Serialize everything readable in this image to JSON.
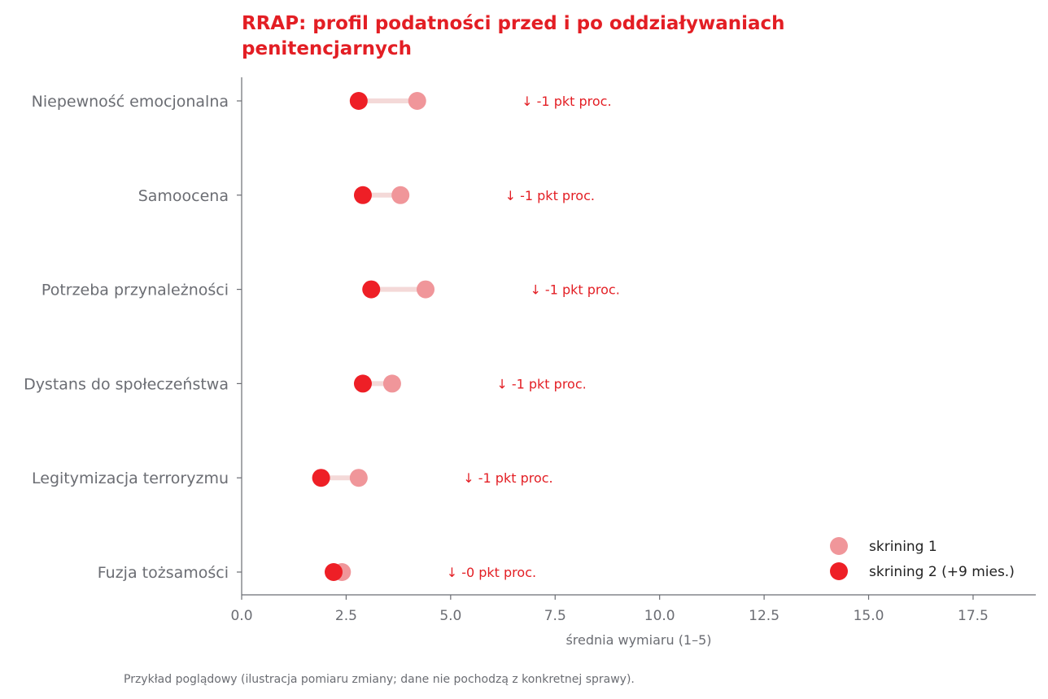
{
  "colors": {
    "accent": "#e31e24",
    "before": "#f0969a",
    "after": "#ee1f26",
    "connector": "#f4d9d8",
    "text_gray": "#6b6d73",
    "axis": "#6b6d73"
  },
  "chart_data": {
    "type": "dumbbell",
    "title_lines": [
      "RRAP: profil podatności przed i po oddziaływaniach",
      "penitencjarnych"
    ],
    "xlabel": "średnia wymiaru (1–5)",
    "xlim": [
      0,
      19
    ],
    "xticks": [
      "0.0",
      "2.5",
      "5.0",
      "7.5",
      "10.0",
      "12.5",
      "15.0",
      "17.5"
    ],
    "xtick_values": [
      0,
      2.5,
      5,
      7.5,
      10,
      12.5,
      15,
      17.5
    ],
    "categories": [
      "Niepewność emocjonalna",
      "Samoocena",
      "Potrzeba przynależności",
      "Dystans do społeczeństwa",
      "Legitymizacja terroryzmu",
      "Fuzja tożsamości"
    ],
    "series": [
      {
        "name": "skrining 1",
        "values": [
          4.2,
          3.8,
          4.4,
          3.6,
          2.8,
          2.4
        ]
      },
      {
        "name": "skrining 2 (+9 mies.)",
        "values": [
          2.8,
          2.9,
          3.1,
          2.9,
          1.9,
          2.2
        ]
      }
    ],
    "annotations": [
      {
        "text": "↓ -1 pkt proc.",
        "x": 6.7
      },
      {
        "text": "↓ -1 pkt proc.",
        "x": 6.3
      },
      {
        "text": "↓ -1 pkt proc.",
        "x": 6.9
      },
      {
        "text": "↓ -1 pkt proc.",
        "x": 6.1
      },
      {
        "text": "↓ -1 pkt proc.",
        "x": 5.3
      },
      {
        "text": "↓ -0 pkt proc.",
        "x": 4.9
      }
    ],
    "legend_position": "lower-right",
    "grid": false
  },
  "footnote": "Przykład poglądowy (ilustracja pomiaru zmiany; dane nie pochodzą z konkretnej sprawy)."
}
